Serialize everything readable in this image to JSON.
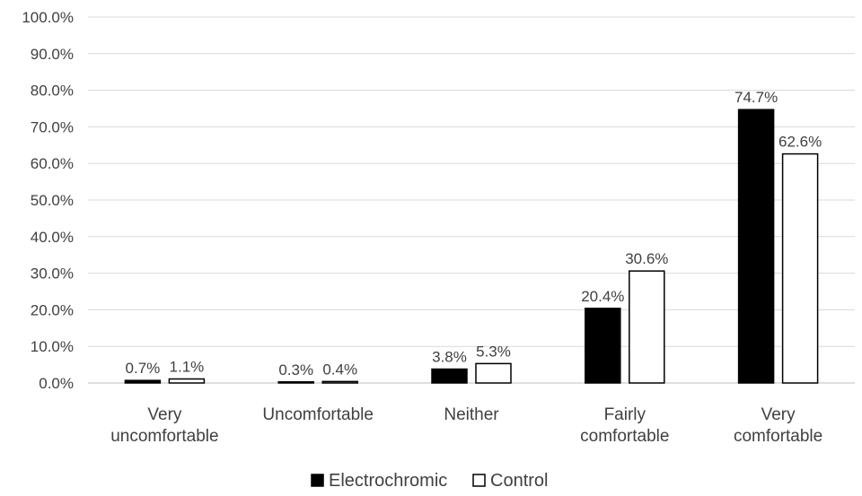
{
  "chart_data": {
    "type": "bar",
    "categories": [
      [
        "Very",
        "uncomfortable"
      ],
      [
        "Uncomfortable"
      ],
      [
        "Neither"
      ],
      [
        "Fairly",
        "comfortable"
      ],
      [
        "Very",
        "comfortable"
      ]
    ],
    "series": [
      {
        "name": "Electrochromic",
        "values": [
          0.7,
          0.3,
          3.8,
          20.4,
          74.7
        ],
        "labels": [
          "0.7%",
          "0.3%",
          "3.8%",
          "20.4%",
          "74.7%"
        ]
      },
      {
        "name": "Control",
        "values": [
          1.1,
          0.4,
          5.3,
          30.6,
          62.6
        ],
        "labels": [
          "1.1%",
          "0.4%",
          "5.3%",
          "30.6%",
          "62.6%"
        ]
      }
    ],
    "y_ticks": [
      "0.0%",
      "10.0%",
      "20.0%",
      "30.0%",
      "40.0%",
      "50.0%",
      "60.0%",
      "70.0%",
      "80.0%",
      "90.0%",
      "100.0%"
    ],
    "ylim": [
      0,
      100
    ],
    "grid": true,
    "legend": "bottom-center",
    "colors": {
      "Electrochromic": "#000000",
      "Control": "#ffffff",
      "grid": "#d9d9d9",
      "text": "#404040"
    }
  }
}
